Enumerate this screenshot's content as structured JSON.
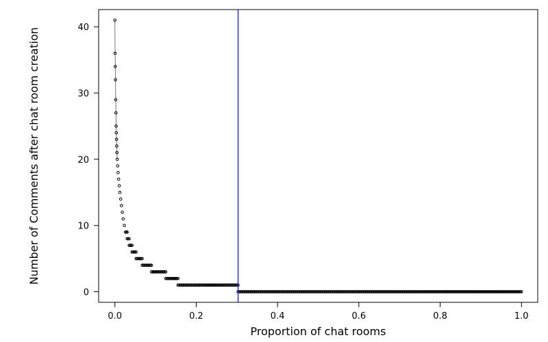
{
  "chart_data": {
    "type": "scatter",
    "title": "",
    "xlabel": "Proportion of chat rooms",
    "ylabel": "Number of Comments after chat room creation",
    "xlim": [
      -0.04,
      1.04
    ],
    "ylim": [
      -1.6,
      42.6
    ],
    "x_ticks": [
      0.0,
      0.2,
      0.4,
      0.6,
      0.8,
      1.0
    ],
    "x_tick_labels": [
      "0.0",
      "0.2",
      "0.4",
      "0.6",
      "0.8",
      "1.0"
    ],
    "y_ticks": [
      0,
      10,
      20,
      30,
      40
    ],
    "y_tick_labels": [
      "0",
      "10",
      "20",
      "30",
      "40"
    ],
    "grid": false,
    "legend": "none",
    "vertical_line": {
      "x": 0.303,
      "color": "#0000ff"
    },
    "marker": "open-circle",
    "series": [
      {
        "values_desc": "sorted descending; each entry is [x_start, x_end, y] for a run of points sharing y",
        "runs": [
          [
            0.0,
            0.0,
            41
          ],
          [
            0.0005,
            0.0005,
            36
          ],
          [
            0.001,
            0.001,
            34
          ],
          [
            0.0015,
            0.0015,
            32
          ],
          [
            0.002,
            0.002,
            29
          ],
          [
            0.0025,
            0.0025,
            27
          ],
          [
            0.003,
            0.003,
            25
          ],
          [
            0.0035,
            0.0035,
            24
          ],
          [
            0.004,
            0.004,
            23
          ],
          [
            0.0045,
            0.0048,
            22
          ],
          [
            0.005,
            0.0055,
            21
          ],
          [
            0.0058,
            0.0065,
            20
          ],
          [
            0.0068,
            0.0075,
            19
          ],
          [
            0.0078,
            0.009,
            18
          ],
          [
            0.0092,
            0.0105,
            17
          ],
          [
            0.0108,
            0.012,
            16
          ],
          [
            0.0122,
            0.014,
            15
          ],
          [
            0.0142,
            0.016,
            14
          ],
          [
            0.0162,
            0.018,
            13
          ],
          [
            0.0182,
            0.02,
            12
          ],
          [
            0.0202,
            0.023,
            11
          ],
          [
            0.0232,
            0.026,
            10
          ],
          [
            0.0262,
            0.03,
            9
          ],
          [
            0.0302,
            0.035,
            8
          ],
          [
            0.0352,
            0.042,
            7
          ],
          [
            0.0422,
            0.052,
            6
          ],
          [
            0.0522,
            0.067,
            5
          ],
          [
            0.0672,
            0.09,
            4
          ],
          [
            0.0902,
            0.125,
            3
          ],
          [
            0.1252,
            0.155,
            2
          ],
          [
            0.1552,
            0.303,
            1
          ],
          [
            0.303,
            1.0,
            0
          ]
        ]
      }
    ]
  }
}
